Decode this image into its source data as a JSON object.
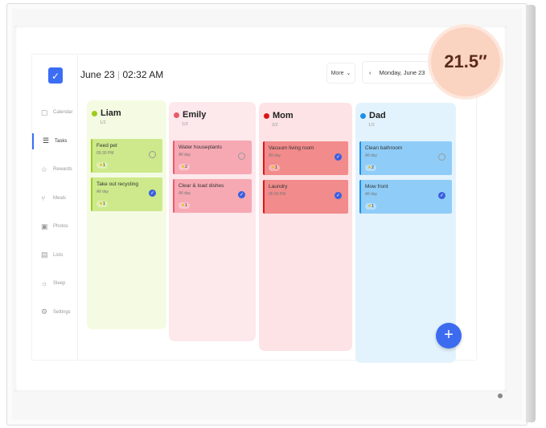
{
  "header": {
    "date": "June 23",
    "time": "02:32 AM",
    "more_label": "More",
    "date_nav": "Monday, June 23"
  },
  "sidebar": {
    "items": [
      {
        "label": "Calendar",
        "icon": "calendar-icon",
        "glyph": "▢"
      },
      {
        "label": "Tasks",
        "icon": "tasks-icon",
        "glyph": "☰",
        "active": true
      },
      {
        "label": "Rewards",
        "icon": "rewards-icon",
        "glyph": "☆"
      },
      {
        "label": "Meals",
        "icon": "meals-icon",
        "glyph": "⑂"
      },
      {
        "label": "Photos",
        "icon": "photos-icon",
        "glyph": "▣"
      },
      {
        "label": "Lists",
        "icon": "lists-icon",
        "glyph": "▤"
      },
      {
        "label": "Sleep",
        "icon": "sleep-icon",
        "glyph": "☼"
      },
      {
        "label": "Settings",
        "icon": "settings-icon",
        "glyph": "⚙"
      }
    ]
  },
  "columns": [
    {
      "name": "Liam",
      "count": "1/2",
      "color": "#9ccc1c",
      "bg": "#f4fbe2",
      "card": "#cde98b",
      "tasks": [
        {
          "title": "Feed pet",
          "time": "05:30 PM",
          "points": "1",
          "done": false
        },
        {
          "title": "Take out recycling",
          "time": "All day",
          "points": "1",
          "done": true
        }
      ]
    },
    {
      "name": "Emily",
      "count": "1/2",
      "color": "#e85a6c",
      "bg": "#fde8ec",
      "card": "#f6a9b3",
      "tasks": [
        {
          "title": "Water houseplants",
          "time": "All day",
          "points": "2",
          "done": false
        },
        {
          "title": "Clear & load dishes",
          "time": "All day",
          "points": "1",
          "done": true
        }
      ]
    },
    {
      "name": "Mom",
      "count": "2/2",
      "color": "#d81818",
      "bg": "#fde3e5",
      "card": "#f28b8b",
      "tasks": [
        {
          "title": "Vacuum living room",
          "time": "All day",
          "points": "1",
          "done": true
        },
        {
          "title": "Laundry",
          "time": "05:00 PM",
          "points": null,
          "done": true
        }
      ]
    },
    {
      "name": "Dad",
      "count": "1/2",
      "color": "#1e8fe8",
      "bg": "#e3f3fd",
      "card": "#8fcdf8",
      "tasks": [
        {
          "title": "Clean bathroom",
          "time": "All day",
          "points": "2",
          "done": false
        },
        {
          "title": "Mow front",
          "time": "All day",
          "points": "1",
          "done": true
        }
      ]
    }
  ],
  "badge": {
    "size_label": "21.5″"
  }
}
